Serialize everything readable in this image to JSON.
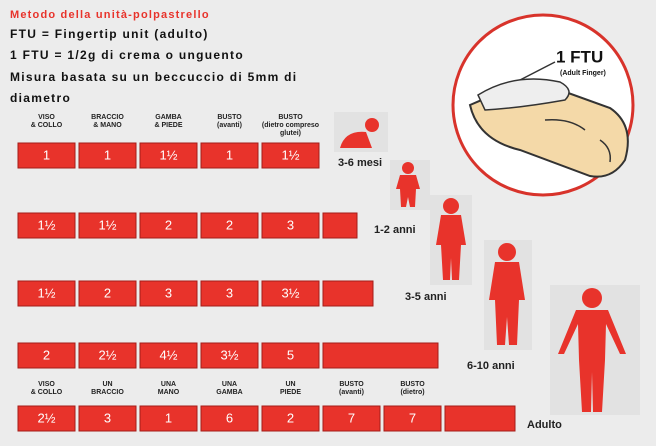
{
  "title": "Metodo della unità-polpastrello",
  "lines": [
    "FTU = Fingertip unit (adulto)",
    "1 FTU = 1/2g di crema o unguento",
    "Misura basata su un beccuccio di 5mm di",
    "diametro"
  ],
  "headers": [
    [
      "VISO",
      "& COLLO"
    ],
    [
      "BRACCIO",
      "& MANO"
    ],
    [
      "GAMBA",
      "& PIEDE"
    ],
    [
      "BUSTO",
      "(avanti)"
    ],
    [
      "BUSTO",
      "(dietro compreso",
      "glutei)"
    ]
  ],
  "age_groups": [
    {
      "label": "3-6 mesi",
      "values": [
        "1",
        "1",
        "1½",
        "1",
        "1½"
      ]
    },
    {
      "label": "1-2 anni",
      "values": [
        "1½",
        "1½",
        "2",
        "2",
        "3"
      ]
    },
    {
      "label": "3-5 anni",
      "values": [
        "1½",
        "2",
        "3",
        "3",
        "3½"
      ]
    },
    {
      "label": "6-10 anni",
      "values": [
        "2",
        "2½",
        "4½",
        "3½",
        "5"
      ]
    }
  ],
  "adult": {
    "label": "Adulto",
    "headers": [
      [
        "VISO",
        "& COLLO"
      ],
      [
        "UN",
        "BRACCIO"
      ],
      [
        "UNA",
        "MANO"
      ],
      [
        "UNA",
        "GAMBA"
      ],
      [
        "UN",
        "PIEDE"
      ],
      [
        "BUSTO",
        "(avanti)"
      ],
      [
        "BUSTO",
        "(dietro)"
      ]
    ],
    "values": [
      "2½",
      "3",
      "1",
      "6",
      "2",
      "7",
      "7"
    ]
  },
  "illustration": {
    "label": "1 FTU",
    "caption": "(Adult Finger)"
  }
}
